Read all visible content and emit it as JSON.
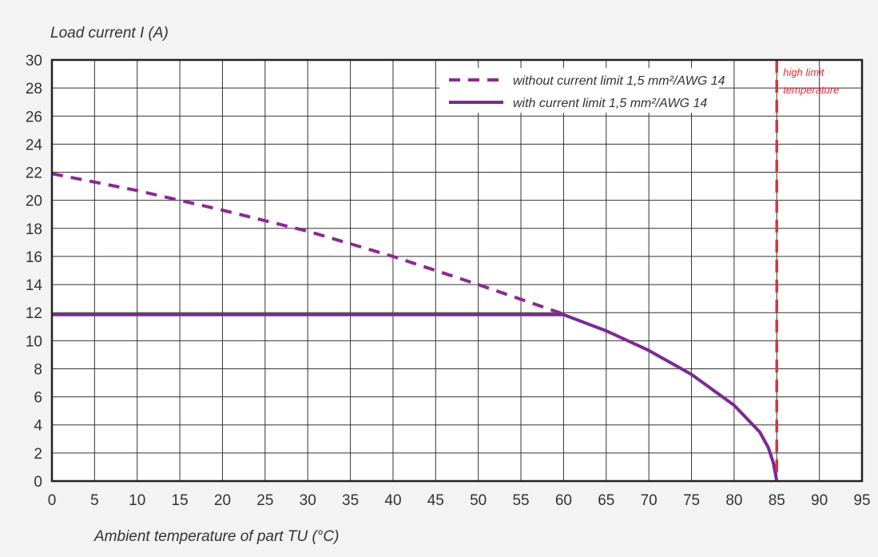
{
  "chart_data": {
    "type": "line",
    "ylabel": "Load current I (A)",
    "xlabel": "Ambient temperature of part TU (°C)",
    "xlim": [
      0,
      95
    ],
    "ylim": [
      0,
      30
    ],
    "x_ticks": [
      0,
      5,
      10,
      15,
      20,
      25,
      30,
      35,
      40,
      45,
      50,
      55,
      60,
      65,
      70,
      75,
      80,
      85,
      90,
      95
    ],
    "y_ticks": [
      0,
      2,
      4,
      6,
      8,
      10,
      12,
      14,
      16,
      18,
      20,
      22,
      24,
      26,
      28,
      30
    ],
    "grid": true,
    "legend_position": "top-right",
    "series": [
      {
        "name": "without current limit 1,5 mm²/AWG 14",
        "style": "dashed",
        "color": "#8a2b8e",
        "x": [
          0,
          10,
          20,
          30,
          40,
          50,
          60
        ],
        "y": [
          21.9,
          20.7,
          19.3,
          17.8,
          16.0,
          14.0,
          11.9
        ]
      },
      {
        "name": "with current limit 1,5 mm²/AWG 14",
        "style": "solid",
        "color": "#7a2a92",
        "x": [
          0,
          60,
          65,
          70,
          75,
          80,
          83,
          84,
          84.6,
          85
        ],
        "y": [
          11.85,
          11.85,
          10.7,
          9.3,
          7.6,
          5.4,
          3.5,
          2.4,
          1.3,
          0
        ]
      }
    ],
    "annotations": [
      {
        "text_lines": [
          "high limit",
          "temperature"
        ],
        "x": 85,
        "color": "#e0303a",
        "style": "dashed-vertical"
      }
    ]
  }
}
